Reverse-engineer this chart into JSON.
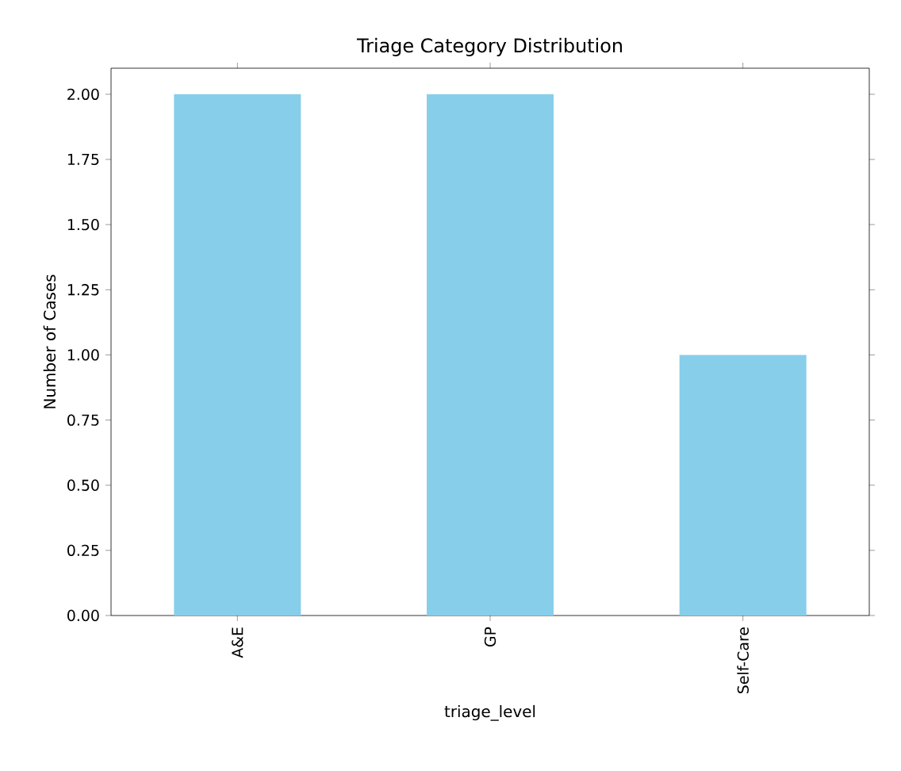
{
  "chart_data": {
    "type": "bar",
    "title": "Triage Category Distribution",
    "xlabel": "triage_level",
    "ylabel": "Number of Cases",
    "categories": [
      "A&E",
      "GP",
      "Self-Care"
    ],
    "values": [
      2,
      2,
      1
    ],
    "color": "#87ceeb",
    "ylim": [
      0,
      2.1
    ],
    "yticks": [
      {
        "value": 0,
        "label": "0.00"
      },
      {
        "value": 0.25,
        "label": "0.25"
      },
      {
        "value": 0.5,
        "label": "0.50"
      },
      {
        "value": 0.75,
        "label": "0.75"
      },
      {
        "value": 1,
        "label": "1.00"
      },
      {
        "value": 1.25,
        "label": "1.25"
      },
      {
        "value": 1.5,
        "label": "1.50"
      },
      {
        "value": 1.75,
        "label": "1.75"
      },
      {
        "value": 2,
        "label": "2.00"
      }
    ]
  }
}
